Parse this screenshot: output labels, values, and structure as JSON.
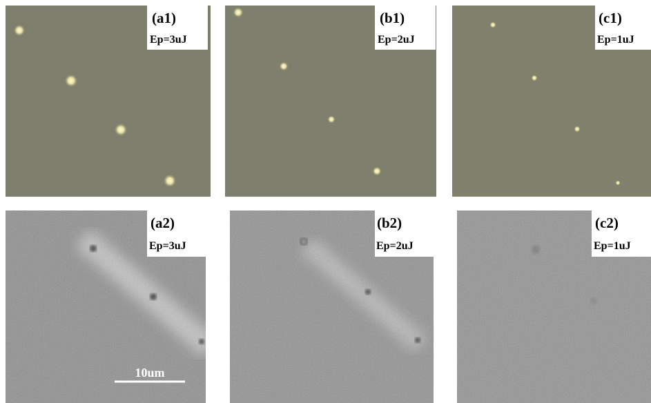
{
  "panels": [
    {
      "label": "(a1)",
      "energy": "Ep=3uJ"
    },
    {
      "label": "(b1)",
      "energy": "Ep=2uJ"
    },
    {
      "label": "(c1)",
      "energy": "Ep=1uJ"
    },
    {
      "label": "(a2)",
      "energy": "Ep=3uJ"
    },
    {
      "label": "(b2)",
      "energy": "Ep=2uJ"
    },
    {
      "label": "(c2)",
      "energy": "Ep=1uJ"
    }
  ],
  "scale_bar": "10um"
}
